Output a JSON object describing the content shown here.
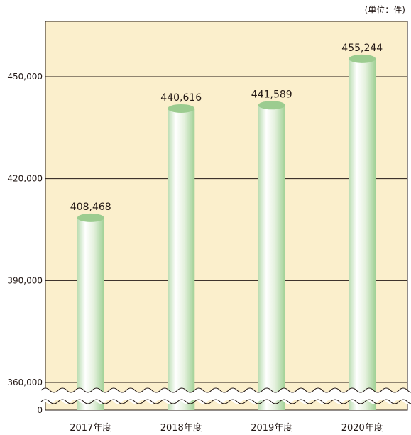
{
  "unit_label": "(単位：件)",
  "chart_data": {
    "type": "bar",
    "categories": [
      "2017年度",
      "2018年度",
      "2019年度",
      "2020年度"
    ],
    "values": [
      408468,
      440616,
      441589,
      455244
    ],
    "value_labels": [
      "408,468",
      "440,616",
      "441,589",
      "455,244"
    ],
    "yticks": [
      0,
      360000,
      390000,
      420000,
      450000
    ],
    "ytick_labels": [
      "0",
      "360,000",
      "390,000",
      "420,000",
      "450,000"
    ],
    "ylim": [
      360000,
      465000
    ],
    "axis_break": true,
    "grid": true,
    "colors": {
      "background": "#fbefcc",
      "bar_light": "#ffffff",
      "bar_dark": "#a3d39c",
      "bar_top": "#9ccc90",
      "grid": "#231815"
    }
  }
}
